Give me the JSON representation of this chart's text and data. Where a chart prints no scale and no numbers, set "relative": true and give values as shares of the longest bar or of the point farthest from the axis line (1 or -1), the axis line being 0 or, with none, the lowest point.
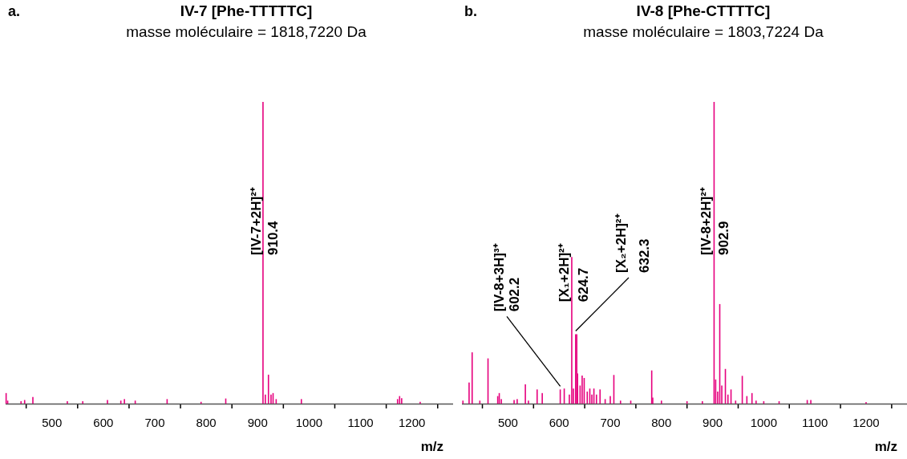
{
  "chart_data": [
    {
      "type": "bar",
      "title": "IV-7 [Phe-TTTTTC]",
      "subtitle": "masse moléculaire = 1818,7220 Da",
      "xlabel": "m/z",
      "relative": true,
      "color": "#e6007e",
      "x": [
        411,
        414,
        440,
        447,
        463,
        530,
        560,
        608,
        634,
        641,
        662,
        724,
        790,
        838,
        910.4,
        915,
        921,
        926,
        930,
        936,
        985,
        1172,
        1176,
        1180,
        1216
      ],
      "values": [
        0.035,
        0.01,
        0.008,
        0.012,
        0.022,
        0.008,
        0.008,
        0.012,
        0.01,
        0.015,
        0.01,
        0.015,
        0.006,
        0.017,
        1,
        0.03,
        0.096,
        0.03,
        0.035,
        0.015,
        0.015,
        0.015,
        0.025,
        0.018,
        0.006
      ],
      "xlim": [
        410,
        1280
      ],
      "xticks": [
        {
          "value": 450,
          "label": null
        },
        500,
        {
          "value": 550,
          "label": null
        },
        600,
        {
          "value": 650,
          "label": null
        },
        700,
        {
          "value": 750,
          "label": null
        },
        800,
        {
          "value": 850,
          "label": null
        },
        900,
        {
          "value": 950,
          "label": null
        },
        1000,
        {
          "value": 1050,
          "label": null
        },
        1100,
        {
          "value": 1150,
          "label": null
        },
        1200,
        {
          "value": 1250,
          "label": null
        }
      ],
      "annotations": [
        "a.",
        {
          "text": "[IV-7+2H]²⁺",
          "x": 910.4,
          "y": 0.5
        },
        {
          "text": "910.4",
          "x": 910.4,
          "y": 0.5
        }
      ]
    },
    {
      "type": "bar",
      "title": "IV-8 [Phe-CTTTTC]",
      "subtitle": "masse moléculaire = 1803,7224 Da",
      "xlabel": "m/z",
      "relative": true,
      "color": "#e6007e",
      "x": [
        412,
        424,
        430,
        445,
        461,
        480,
        483,
        487,
        512,
        518,
        534,
        540,
        557,
        567,
        602.2,
        610,
        620,
        624.7,
        628,
        632.3,
        634.5,
        636,
        641,
        645,
        649,
        655,
        660,
        664,
        668,
        673,
        680,
        690,
        700,
        707,
        720,
        740,
        781,
        783,
        800,
        850,
        880,
        902.9,
        906,
        910,
        914,
        918,
        925,
        930,
        936,
        945,
        958,
        967,
        977,
        985,
        1000,
        1030,
        1085,
        1092,
        1200
      ],
      "values": [
        0.01,
        0.07,
        0.17,
        0.01,
        0.15,
        0.025,
        0.035,
        0.015,
        0.012,
        0.015,
        0.064,
        0.01,
        0.047,
        0.035,
        0.047,
        0.05,
        0.03,
        0.486,
        0.05,
        0.23,
        0.23,
        0.1,
        0.06,
        0.093,
        0.085,
        0.04,
        0.05,
        0.03,
        0.05,
        0.03,
        0.047,
        0.015,
        0.025,
        0.095,
        0.01,
        0.01,
        0.11,
        0.02,
        0.01,
        0.008,
        0.008,
        1,
        0.08,
        0.04,
        0.33,
        0.06,
        0.115,
        0.03,
        0.047,
        0.01,
        0.092,
        0.025,
        0.035,
        0.01,
        0.008,
        0.008,
        0.012,
        0.012,
        0.005
      ],
      "xlim": [
        410,
        1280
      ],
      "xticks": [
        {
          "value": 450,
          "label": null
        },
        500,
        {
          "value": 550,
          "label": null
        },
        600,
        {
          "value": 650,
          "label": null
        },
        700,
        {
          "value": 750,
          "label": null
        },
        800,
        {
          "value": 850,
          "label": null
        },
        900,
        {
          "value": 950,
          "label": null
        },
        1000,
        {
          "value": 1050,
          "label": null
        },
        1100,
        {
          "value": 1150,
          "label": null
        },
        1200,
        {
          "value": 1250,
          "label": null
        }
      ],
      "annotations": [
        "b.",
        {
          "text": "[IV-8+3H]³⁺",
          "x": 602.2,
          "y": 0.047
        },
        {
          "text": "602.2",
          "x": 602.2,
          "y": 0.047
        },
        {
          "text": "[X₁+2H]²⁺",
          "x": 624.7,
          "y": 0.486
        },
        {
          "text": "624.7",
          "x": 624.7,
          "y": 0.486
        },
        {
          "text": "[X₂+2H]²⁺",
          "x": 632.3,
          "y": 0.23
        },
        {
          "text": "632.3",
          "x": 632.3,
          "y": 0.23
        },
        {
          "text": "[IV-8+2H]²⁺",
          "x": 902.9,
          "y": 0.5
        },
        {
          "text": "902.9",
          "x": 902.9,
          "y": 0.5
        }
      ]
    }
  ]
}
